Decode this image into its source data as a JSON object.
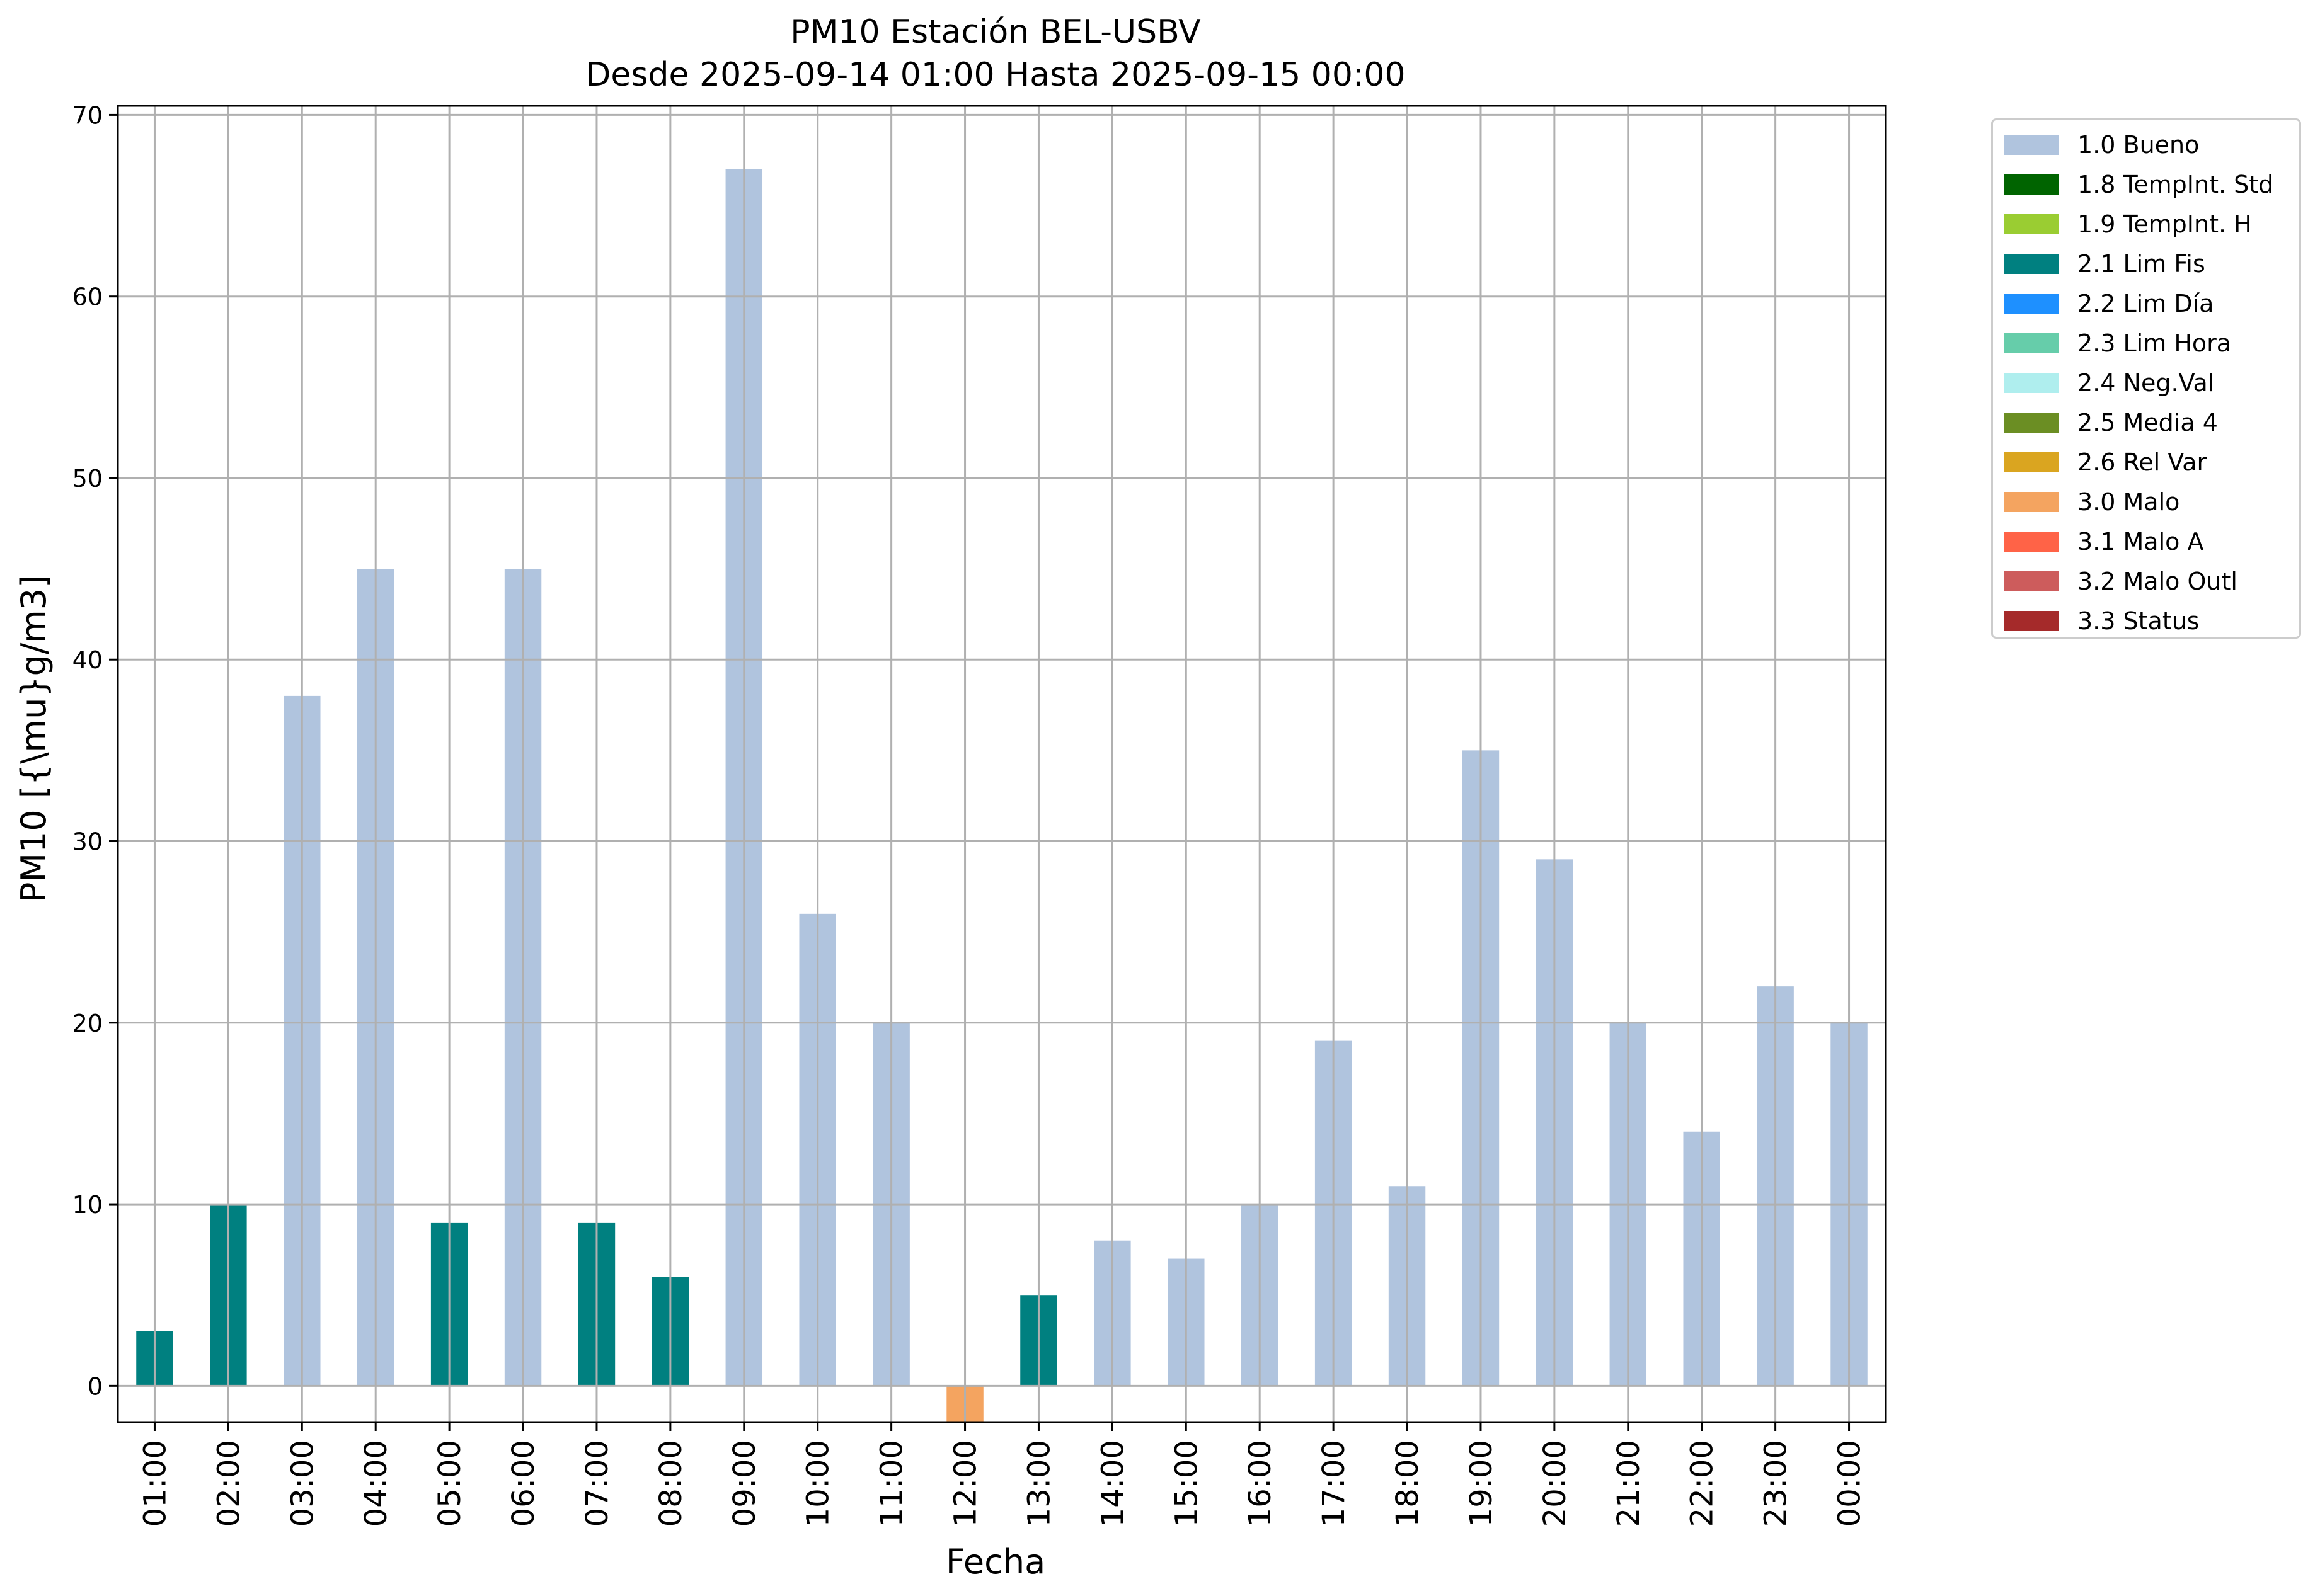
{
  "chart_data": {
    "type": "bar",
    "title": "PM10 Estación BEL-USBV",
    "subtitle": "Desde 2025-09-14 01:00 Hasta 2025-09-15 00:00",
    "xlabel": "Fecha",
    "ylabel": "PM10 [{\\mu}g/m3]",
    "ylim": [
      -2,
      70.5
    ],
    "yticks": [
      0,
      10,
      20,
      30,
      40,
      50,
      60,
      70
    ],
    "grid": true,
    "legend_position": "outside-right",
    "categories": [
      "01:00",
      "02:00",
      "03:00",
      "04:00",
      "05:00",
      "06:00",
      "07:00",
      "08:00",
      "09:00",
      "10:00",
      "11:00",
      "12:00",
      "13:00",
      "14:00",
      "15:00",
      "16:00",
      "17:00",
      "18:00",
      "19:00",
      "20:00",
      "21:00",
      "22:00",
      "23:00",
      "00:00"
    ],
    "values": [
      3,
      10,
      38,
      45,
      9,
      45,
      9,
      6,
      67,
      26,
      20,
      -2,
      5,
      8,
      7,
      10,
      19,
      11,
      35,
      29,
      20,
      14,
      22,
      20
    ],
    "flags": [
      "2.1 Lim Fis",
      "2.1 Lim Fis",
      "1.0 Bueno",
      "1.0 Bueno",
      "2.1 Lim Fis",
      "1.0 Bueno",
      "2.1 Lim Fis",
      "2.1 Lim Fis",
      "1.0 Bueno",
      "1.0 Bueno",
      "1.0 Bueno",
      "3.0 Malo",
      "2.1 Lim Fis",
      "1.0 Bueno",
      "1.0 Bueno",
      "1.0 Bueno",
      "1.0 Bueno",
      "1.0 Bueno",
      "1.0 Bueno",
      "1.0 Bueno",
      "1.0 Bueno",
      "1.0 Bueno",
      "1.0 Bueno",
      "1.0 Bueno"
    ],
    "legend": [
      {
        "label": "1.0 Bueno",
        "color": "#b0c4de"
      },
      {
        "label": "1.8 TempInt. Std",
        "color": "#006400"
      },
      {
        "label": "1.9 TempInt. H",
        "color": "#9acd32"
      },
      {
        "label": "2.1 Lim Fis",
        "color": "#008080"
      },
      {
        "label": "2.2 Lim Día",
        "color": "#1e90ff"
      },
      {
        "label": "2.3 Lim Hora",
        "color": "#66cdaa"
      },
      {
        "label": "2.4 Neg.Val",
        "color": "#afeeee"
      },
      {
        "label": "2.5 Media 4",
        "color": "#6b8e23"
      },
      {
        "label": "2.6 Rel Var",
        "color": "#daa520"
      },
      {
        "label": "3.0 Malo",
        "color": "#f4a460"
      },
      {
        "label": "3.1 Malo A",
        "color": "#ff6347"
      },
      {
        "label": "3.2 Malo Outl",
        "color": "#cd5c5c"
      },
      {
        "label": "3.3 Status",
        "color": "#a52a2a"
      }
    ]
  }
}
